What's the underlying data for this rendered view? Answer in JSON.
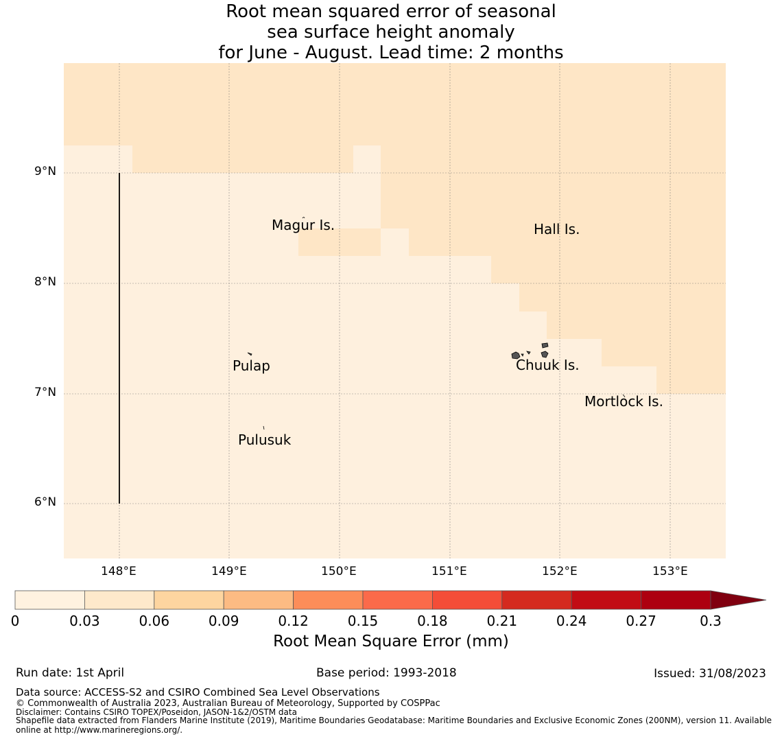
{
  "title": {
    "line1": "Root mean squared error of seasonal",
    "line2": "sea surface height anomaly",
    "line3": "for June - August. Lead time: 2 months"
  },
  "colors": {
    "background_sea": "#fef0de",
    "zone_b": "#fee6c6",
    "palette": [
      "#fff2e0",
      "#fee9cb",
      "#fdd5a0",
      "#fcbb83",
      "#fc8d59",
      "#fb6a4a",
      "#f44d38",
      "#d42a1f",
      "#c20c14",
      "#ad0010",
      "#800010"
    ]
  },
  "map": {
    "lat_ticks": [
      "9°N",
      "8°N",
      "7°N",
      "6°N"
    ],
    "lon_ticks": [
      "148°E",
      "149°E",
      "150°E",
      "151°E",
      "152°E",
      "153°E"
    ],
    "labels": {
      "magur": "Magur Is.",
      "hall": "Hall Is.",
      "pulap": "Pulap",
      "chuuk": "Chuuk Is.",
      "mortlock": "Mortlock Is.",
      "pulusuk": "Pulusuk"
    }
  },
  "colorbar": {
    "ticks": [
      "0",
      "0.03",
      "0.06",
      "0.09",
      "0.12",
      "0.15",
      "0.18",
      "0.21",
      "0.24",
      "0.27",
      "0.3"
    ],
    "label": "Root Mean Square Error (mm)"
  },
  "footer": {
    "run_date": "Run date: 1st April",
    "base_period": "Base period: 1993-2018",
    "issued": "Issued: 31/08/2023",
    "data_source": "Data source: ACCESS-S2 and CSIRO Combined Sea Level Observations",
    "copyright": "© Commonwealth of Australia 2023, Australian Bureau of Meteorology, Supported by COSPPac",
    "disclaimer": "Disclaimer: Contains CSIRO TOPEX/Poseidon, JASON-1&2/OSTM data",
    "shapefile_1": "Shapefile data extracted from Flanders Marine Institute (2019), Maritime Boundaries Geodatabase: Maritime Boundaries and Exclusive Economic Zones (200NM), version 11. Available",
    "shapefile_2": "online at http://www.marineregions.org/."
  }
}
